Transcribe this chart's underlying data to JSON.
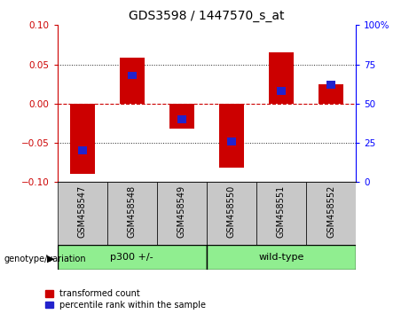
{
  "title": "GDS3598 / 1447570_s_at",
  "samples": [
    "GSM458547",
    "GSM458548",
    "GSM458549",
    "GSM458550",
    "GSM458551",
    "GSM458552"
  ],
  "red_values": [
    -0.09,
    0.058,
    -0.032,
    -0.082,
    0.065,
    0.025
  ],
  "blue_values_pct": [
    20,
    68,
    40,
    26,
    58,
    62
  ],
  "ylim_left": [
    -0.1,
    0.1
  ],
  "ylim_right": [
    0,
    100
  ],
  "yticks_left": [
    -0.1,
    -0.05,
    0,
    0.05,
    0.1
  ],
  "yticks_right": [
    0,
    25,
    50,
    75,
    100
  ],
  "group_ranges": [
    [
      0,
      3,
      "p300 +/-"
    ],
    [
      3,
      6,
      "wild-type"
    ]
  ],
  "bar_width": 0.5,
  "blue_bar_width": 0.18,
  "blue_bar_height": 0.01,
  "red_color": "#cc0000",
  "blue_color": "#2222cc",
  "zero_line_color": "#cc0000",
  "dot_line_color": "#222222",
  "bg_plot": "white",
  "bg_xtick": "#c8c8c8",
  "bg_group": "#90ee90",
  "legend_items": [
    "transformed count",
    "percentile rank within the sample"
  ],
  "genotype_label": "genotype/variation",
  "dotted_yticks": [
    -0.05,
    0.05
  ],
  "zero_ytick": 0
}
